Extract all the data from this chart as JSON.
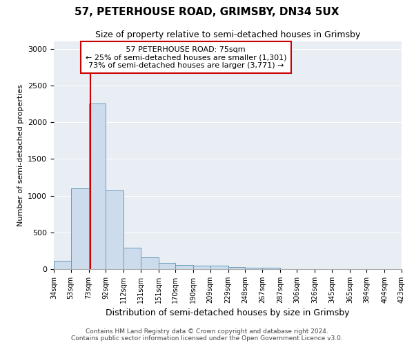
{
  "title": "57, PETERHOUSE ROAD, GRIMSBY, DN34 5UX",
  "subtitle": "Size of property relative to semi-detached houses in Grimsby",
  "xlabel": "Distribution of semi-detached houses by size in Grimsby",
  "ylabel": "Number of semi-detached properties",
  "footer1": "Contains HM Land Registry data © Crown copyright and database right 2024.",
  "footer2": "Contains public sector information licensed under the Open Government Licence v3.0.",
  "annotation_title": "57 PETERHOUSE ROAD: 75sqm",
  "annotation_line1": "← 25% of semi-detached houses are smaller (1,301)",
  "annotation_line2": "73% of semi-detached houses are larger (3,771) →",
  "property_size": 75,
  "bar_color": "#ccdcec",
  "bar_edge_color": "#6699bb",
  "vline_color": "#cc0000",
  "annotation_box_color": "#ffffff",
  "annotation_box_edge": "#cc0000",
  "plot_bg_color": "#e8eef4",
  "bin_edges": [
    34,
    53,
    73,
    92,
    112,
    131,
    151,
    170,
    190,
    209,
    229,
    248,
    267,
    287,
    306,
    326,
    345,
    365,
    384,
    404,
    423
  ],
  "bin_counts": [
    115,
    1100,
    2250,
    1070,
    295,
    160,
    85,
    55,
    50,
    45,
    30,
    20,
    18,
    0,
    0,
    0,
    0,
    0,
    0,
    0
  ],
  "ylim": [
    0,
    3100
  ],
  "yticks": [
    0,
    500,
    1000,
    1500,
    2000,
    2500,
    3000
  ]
}
